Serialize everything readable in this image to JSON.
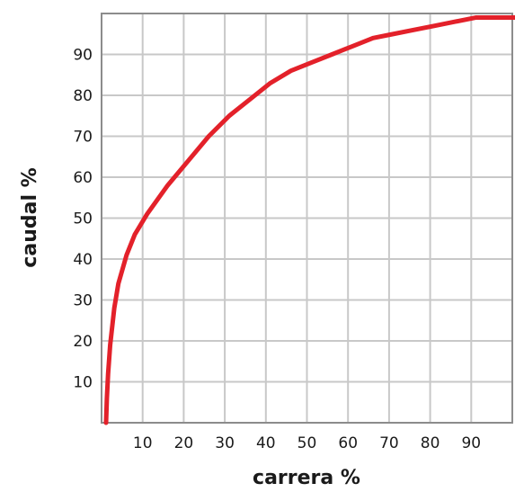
{
  "chart_data": {
    "type": "line",
    "title": "",
    "xlabel": "carrera %",
    "ylabel": "caudal %",
    "xlim": [
      0,
      100
    ],
    "ylim": [
      0,
      100
    ],
    "grid": true,
    "x_ticks": [
      10,
      20,
      30,
      40,
      50,
      60,
      70,
      80,
      90
    ],
    "y_ticks": [
      10,
      20,
      30,
      40,
      50,
      60,
      70,
      80,
      90
    ],
    "series": [
      {
        "color": "#e3212a",
        "x": [
          0,
          0.2,
          0.5,
          1,
          2,
          3,
          5,
          7,
          10,
          15,
          20,
          25,
          30,
          35,
          40,
          45,
          50,
          55,
          60,
          65,
          70,
          75,
          80,
          85,
          90,
          95,
          100
        ],
        "y": [
          0,
          6,
          12,
          19,
          28,
          34,
          41,
          46,
          51,
          58,
          64,
          70,
          75,
          79,
          83,
          86,
          88,
          90,
          92,
          94,
          95,
          96,
          97,
          98,
          99,
          99,
          99
        ]
      }
    ],
    "colors": {
      "grid": "#c8c8c8",
      "frame": "#8c8c8c",
      "curve": "#e3212a"
    }
  }
}
